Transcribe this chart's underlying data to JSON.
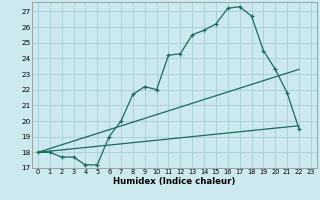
{
  "xlabel": "Humidex (Indice chaleur)",
  "background_color": "#cce9ef",
  "grid_color": "#aacdd6",
  "line_color": "#1a6b5a",
  "xlim": [
    -0.5,
    23.5
  ],
  "ylim": [
    17.0,
    27.6
  ],
  "yticks": [
    17,
    18,
    19,
    20,
    21,
    22,
    23,
    24,
    25,
    26,
    27
  ],
  "xticks": [
    0,
    1,
    2,
    3,
    4,
    5,
    6,
    7,
    8,
    9,
    10,
    11,
    12,
    13,
    14,
    15,
    16,
    17,
    18,
    19,
    20,
    21,
    22,
    23
  ],
  "curve1_x": [
    0,
    1,
    2,
    3,
    4,
    5,
    6,
    7,
    8,
    9,
    10,
    11,
    12,
    13,
    14,
    15,
    16,
    17,
    18,
    19,
    20,
    21,
    22
  ],
  "curve1_y": [
    18.0,
    18.0,
    17.7,
    17.7,
    17.2,
    17.2,
    19.0,
    20.0,
    21.7,
    22.2,
    22.0,
    24.2,
    24.3,
    25.5,
    25.8,
    26.2,
    27.2,
    27.3,
    26.7,
    24.5,
    23.3,
    21.8,
    19.5
  ],
  "curve2_x": [
    0,
    22
  ],
  "curve2_y": [
    18.0,
    23.3
  ],
  "curve3_x": [
    0,
    22
  ],
  "curve3_y": [
    18.0,
    19.7
  ]
}
